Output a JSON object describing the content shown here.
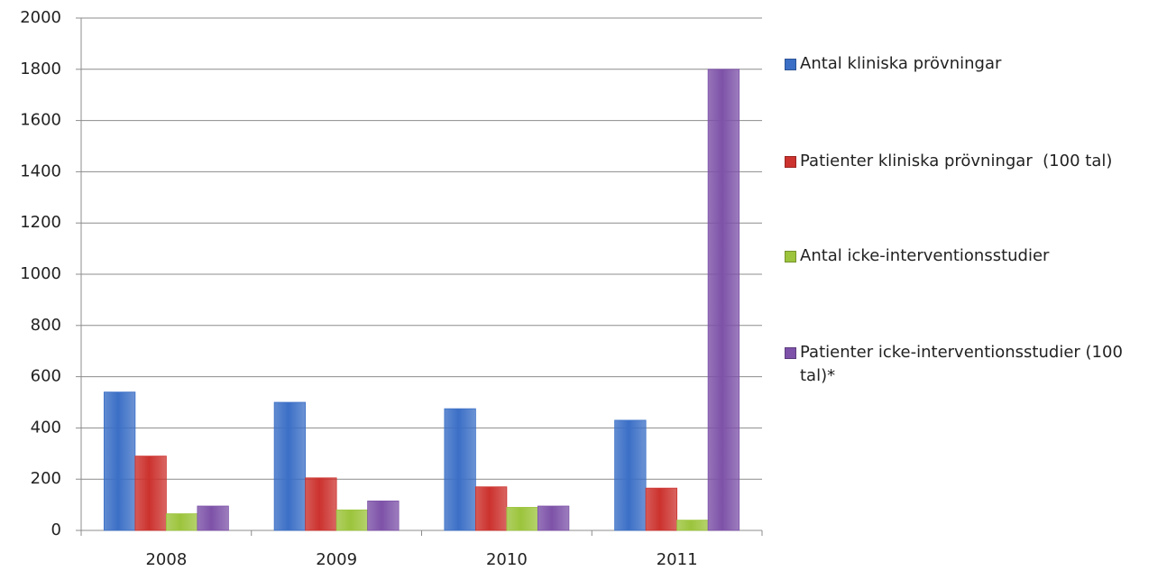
{
  "chart_data": {
    "type": "bar",
    "categories": [
      "2008",
      "2009",
      "2010",
      "2011"
    ],
    "series": [
      {
        "name": "Antal kliniska prövningar",
        "color": "#3b6fc6",
        "values": [
          540,
          500,
          475,
          430
        ]
      },
      {
        "name": "Patienter kliniska prövningar  (100 tal)",
        "color": "#cc322e",
        "values": [
          290,
          205,
          170,
          165
        ]
      },
      {
        "name": "Antal icke-interventionsstudier",
        "color": "#9cc43c",
        "values": [
          65,
          80,
          90,
          40
        ]
      },
      {
        "name": "Patienter icke-interventionsstudier (100 tal)*",
        "color": "#7d52a8",
        "values": [
          95,
          115,
          95,
          1800
        ]
      }
    ],
    "ylim": [
      0,
      2000
    ],
    "yticks": [
      0,
      200,
      400,
      600,
      800,
      1000,
      1200,
      1400,
      1600,
      1800,
      2000
    ],
    "grid": true,
    "legend": "right"
  }
}
